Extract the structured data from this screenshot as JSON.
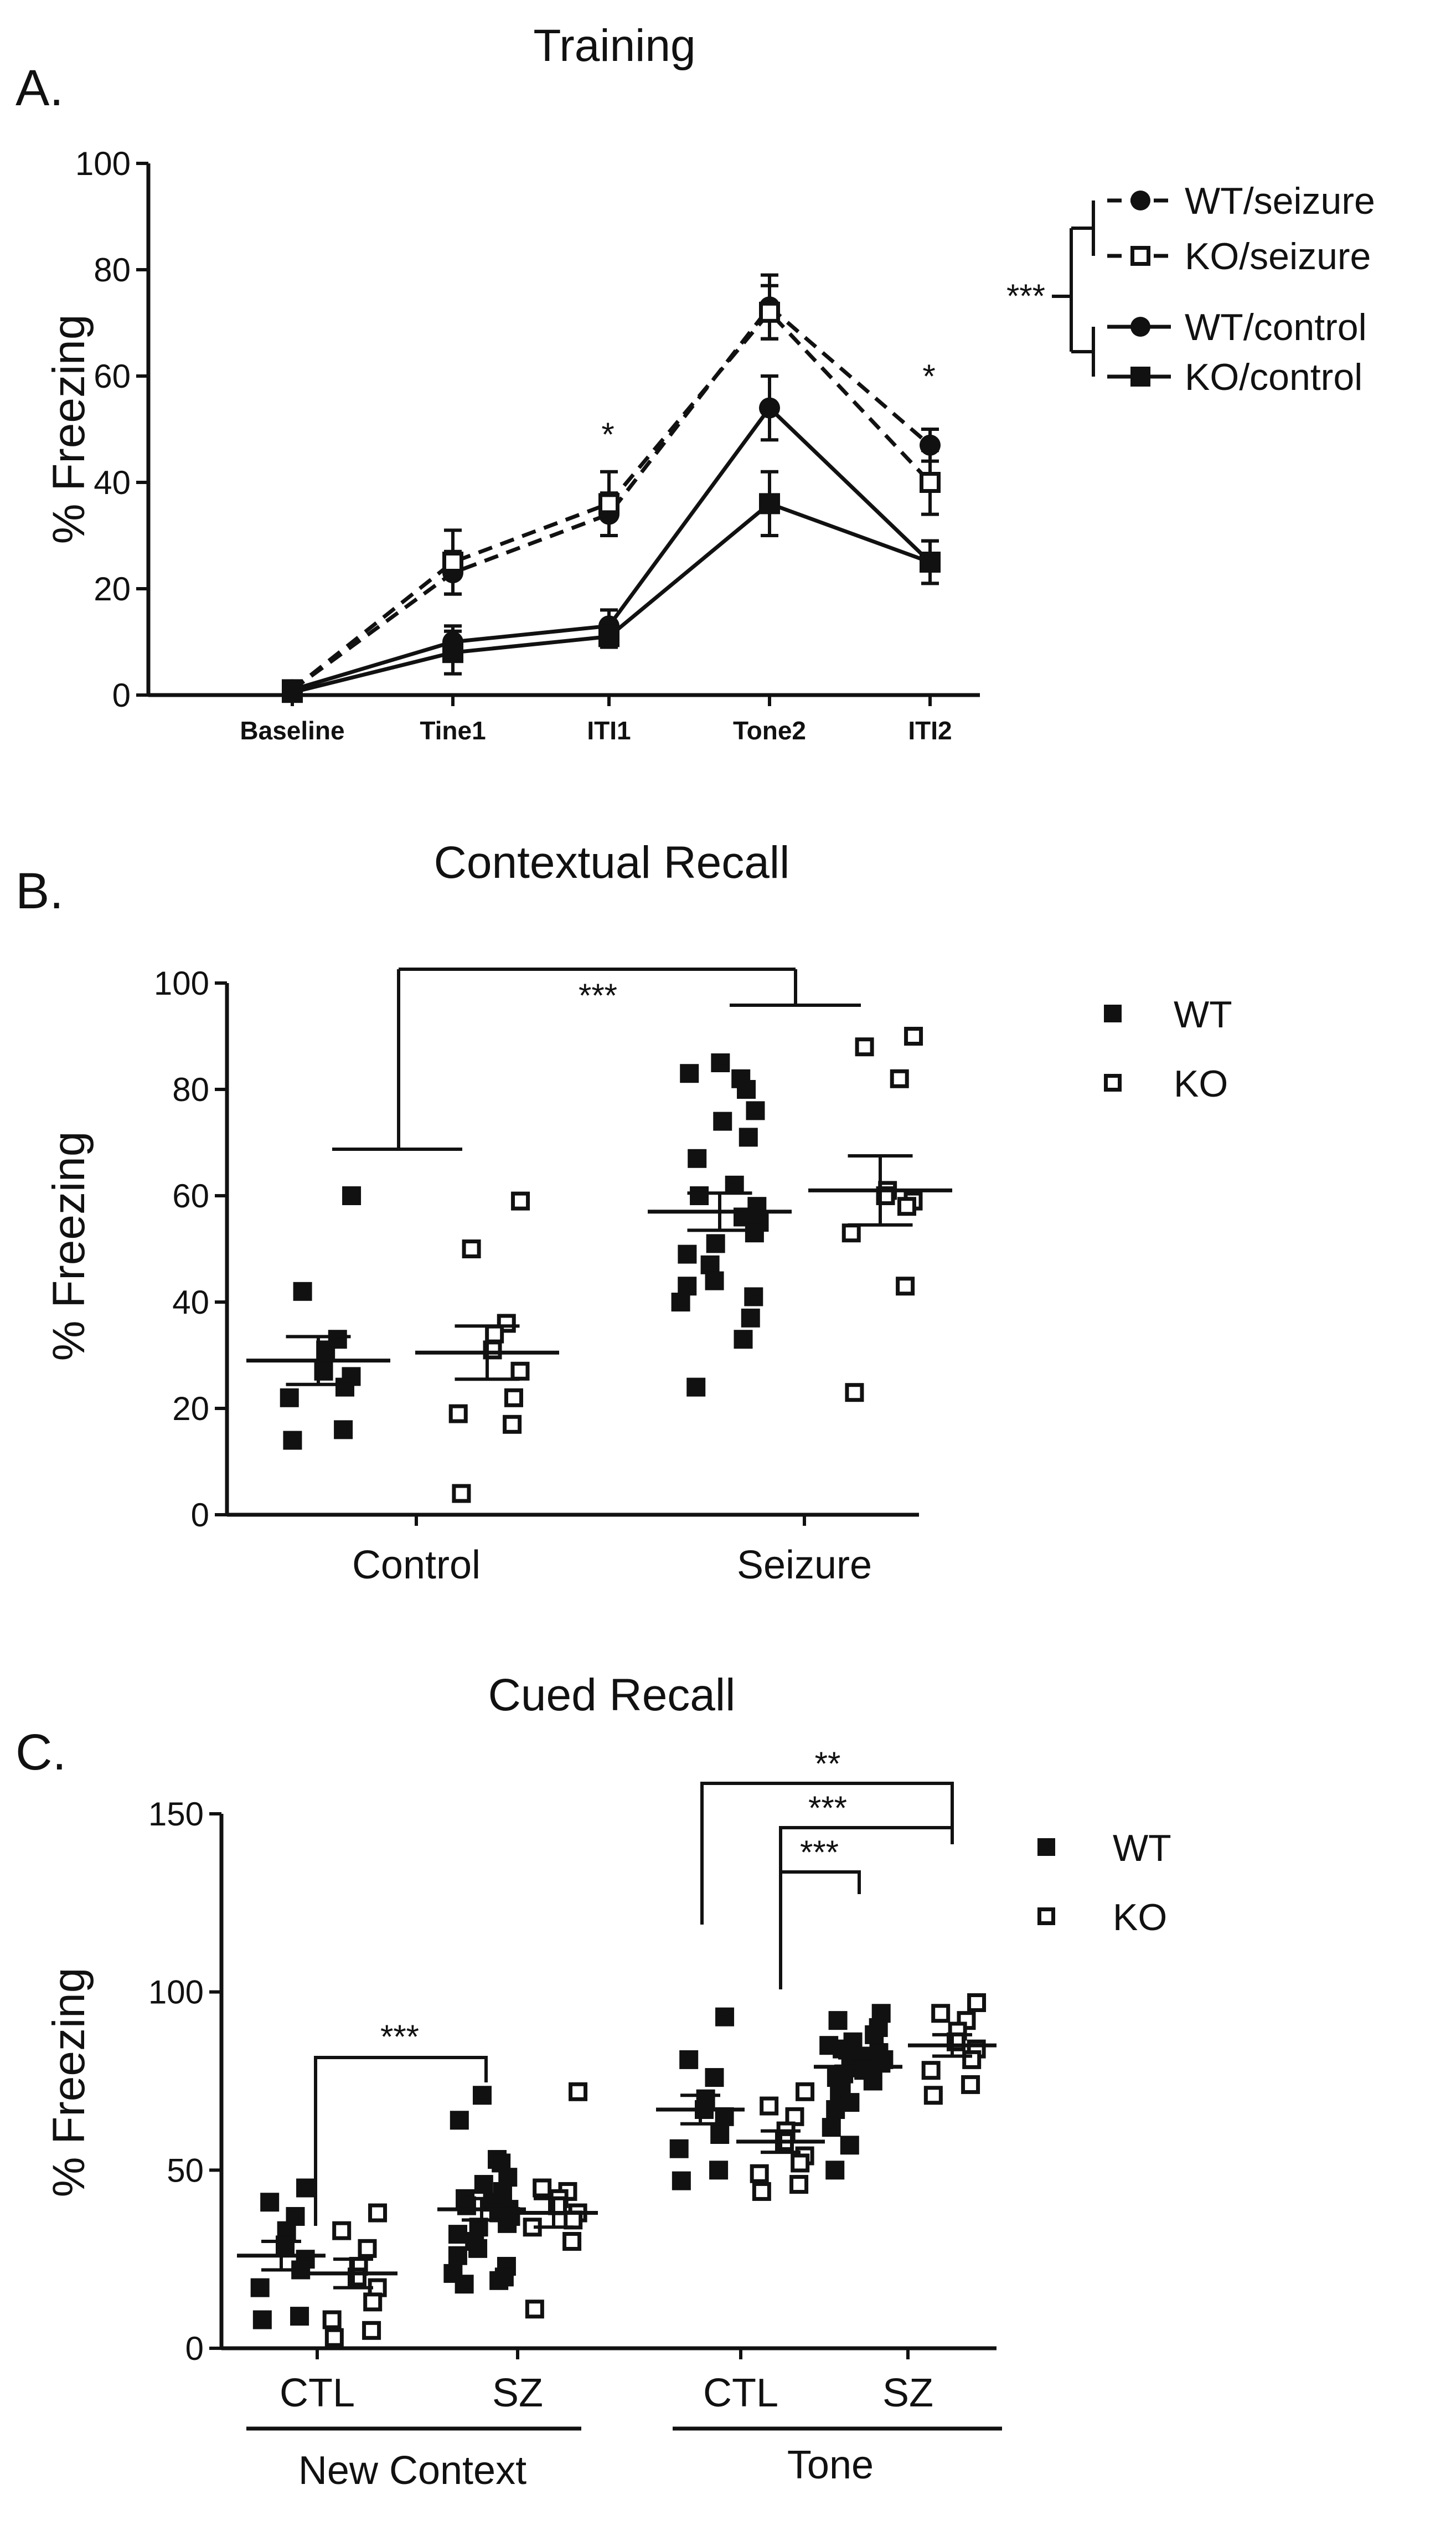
{
  "chart_data": [
    {
      "panel": "A.",
      "type": "line",
      "title": "Training",
      "ylabel": "% Freezing",
      "xlabel": "",
      "ylim": [
        0,
        100
      ],
      "yticks": [
        0,
        20,
        40,
        60,
        80,
        100
      ],
      "categories": [
        "Baseline",
        "Tine1",
        "ITI1",
        "Tone2",
        "ITI2"
      ],
      "series": [
        {
          "name": "WT/seizure",
          "style": "dashed",
          "marker": "circle-filled",
          "values": [
            1,
            23,
            34,
            73,
            47
          ],
          "errors": [
            1,
            4,
            4,
            6,
            3
          ]
        },
        {
          "name": "KO/seizure",
          "style": "dashed",
          "marker": "square-open",
          "values": [
            1,
            25,
            36,
            72,
            40
          ],
          "errors": [
            1,
            6,
            6,
            5,
            6
          ]
        },
        {
          "name": "WT/control",
          "style": "solid",
          "marker": "circle-filled",
          "values": [
            1,
            10,
            13,
            54,
            25
          ],
          "errors": [
            1,
            3,
            3,
            6,
            4
          ]
        },
        {
          "name": "KO/control",
          "style": "solid",
          "marker": "square-filled",
          "values": [
            0.5,
            8,
            11,
            36,
            25
          ],
          "errors": [
            1,
            4,
            2,
            6,
            4
          ]
        }
      ],
      "annotations": [
        {
          "text": "*",
          "at": "ITI1"
        },
        {
          "text": "*",
          "at": "ITI2"
        },
        {
          "text": "***",
          "at": "legend bracket seizure vs control"
        }
      ]
    },
    {
      "panel": "B.",
      "type": "scatter",
      "title": "Contextual Recall",
      "ylabel": "% Freezing",
      "ylim": [
        0,
        100
      ],
      "yticks": [
        0,
        20,
        40,
        60,
        80,
        100
      ],
      "categories": [
        "Control",
        "Seizure"
      ],
      "legend": [
        "WT",
        "KO"
      ],
      "series": [
        {
          "name": "WT",
          "group": "Control",
          "mean": 29,
          "sem": 4.5,
          "points": [
            60,
            42,
            33,
            31,
            27,
            26,
            24,
            22,
            16,
            14
          ]
        },
        {
          "name": "KO",
          "group": "Control",
          "mean": 30.5,
          "sem": 5,
          "points": [
            59,
            50,
            36,
            34,
            31,
            27,
            22,
            19,
            17,
            4
          ]
        },
        {
          "name": "WT",
          "group": "Seizure",
          "mean": 57,
          "sem": 3.5,
          "points": [
            85,
            83,
            82,
            80,
            76,
            74,
            71,
            67,
            62,
            60,
            58,
            56,
            55,
            53,
            51,
            49,
            47,
            44,
            43,
            41,
            40,
            37,
            33,
            24
          ]
        },
        {
          "name": "KO",
          "group": "Seizure",
          "mean": 61,
          "sem": 6.5,
          "points": [
            90,
            88,
            82,
            61,
            60,
            59,
            58,
            53,
            43,
            23
          ]
        }
      ],
      "annotations": [
        {
          "text": "***",
          "between": [
            "Control",
            "Seizure"
          ]
        }
      ]
    },
    {
      "panel": "C.",
      "type": "scatter",
      "title": "Cued Recall",
      "ylabel": "% Freezing",
      "ylim": [
        0,
        150
      ],
      "yticks": [
        0,
        50,
        100,
        150
      ],
      "categories": [
        "CTL",
        "SZ",
        "CTL",
        "SZ"
      ],
      "groups": [
        "New Context",
        "Tone"
      ],
      "legend": [
        "WT",
        "KO"
      ],
      "series": [
        {
          "name": "WT",
          "group": "New Context CTL",
          "mean": 26,
          "sem": 4,
          "points": [
            45,
            41,
            37,
            33,
            29,
            25,
            22,
            17,
            9,
            8
          ]
        },
        {
          "name": "KO",
          "group": "New Context CTL",
          "mean": 21,
          "sem": 4,
          "points": [
            38,
            33,
            28,
            23,
            20,
            17,
            13,
            8,
            5,
            3
          ]
        },
        {
          "name": "WT",
          "group": "New Context SZ",
          "mean": 39,
          "sem": 3,
          "points": [
            71,
            64,
            53,
            52,
            48,
            46,
            44,
            42,
            41,
            40,
            39,
            38,
            37,
            35,
            34,
            32,
            30,
            28,
            26,
            23,
            21,
            20,
            19,
            18
          ]
        },
        {
          "name": "KO",
          "group": "New Context SZ",
          "mean": 38,
          "sem": 4,
          "points": [
            72,
            45,
            44,
            42,
            40,
            38,
            36,
            34,
            30,
            11
          ]
        },
        {
          "name": "WT",
          "group": "Tone CTL",
          "mean": 67,
          "sem": 4,
          "points": [
            93,
            81,
            76,
            70,
            67,
            65,
            60,
            56,
            50,
            47
          ]
        },
        {
          "name": "KO",
          "group": "Tone CTL",
          "mean": 58,
          "sem": 3,
          "points": [
            72,
            68,
            65,
            61,
            58,
            54,
            52,
            49,
            46,
            44
          ]
        },
        {
          "name": "WT",
          "group": "Tone SZ",
          "mean": 79,
          "sem": 2.5,
          "points": [
            94,
            92,
            90,
            88,
            86,
            85,
            84,
            83,
            82,
            81,
            80,
            79,
            78,
            77,
            76,
            75,
            73,
            71,
            69,
            67,
            62,
            57,
            50
          ]
        },
        {
          "name": "KO",
          "group": "Tone SZ",
          "mean": 85,
          "sem": 3,
          "points": [
            97,
            94,
            92,
            89,
            86,
            84,
            81,
            78,
            74,
            71
          ]
        }
      ],
      "annotations": [
        {
          "text": "***",
          "between": [
            "New Context CTL",
            "New Context SZ"
          ]
        },
        {
          "text": "**",
          "between": [
            "Tone CTL WT",
            "Tone SZ KO"
          ]
        },
        {
          "text": "***",
          "between": [
            "Tone CTL KO",
            "Tone SZ KO"
          ]
        },
        {
          "text": "***",
          "between": [
            "Tone CTL KO",
            "Tone SZ WT"
          ]
        }
      ]
    }
  ]
}
